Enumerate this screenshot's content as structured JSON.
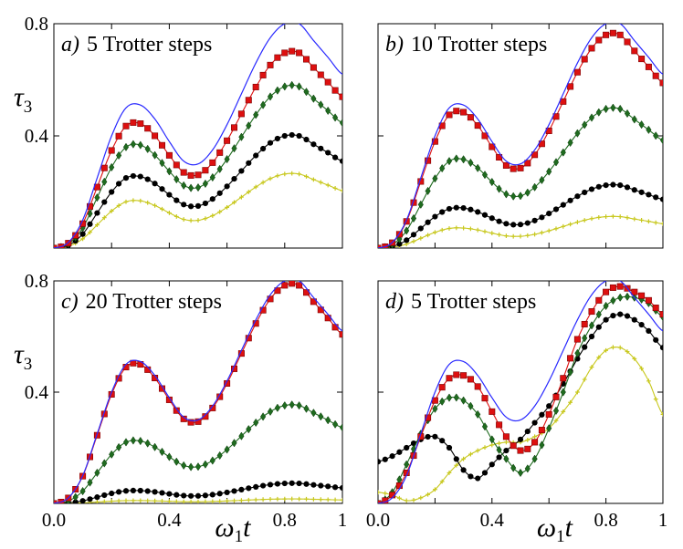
{
  "chart_data": [
    {
      "type": "line",
      "panel_label": "a)",
      "title": "5 Trotter steps",
      "ylabel": "τ3",
      "xlabel": "",
      "xlim": [
        0,
        1
      ],
      "ylim": [
        0,
        0.8
      ],
      "xticks": [],
      "yticks": [
        "0.4",
        "0.8"
      ],
      "exact": {
        "name": "exact",
        "color": "#2929ff",
        "x": [
          0,
          0.05,
          0.1,
          0.15,
          0.2,
          0.25,
          0.3,
          0.35,
          0.4,
          0.45,
          0.5,
          0.55,
          0.6,
          0.65,
          0.7,
          0.75,
          0.8,
          0.85,
          0.9,
          0.95,
          1.0
        ],
        "values": [
          0,
          0.02,
          0.1,
          0.25,
          0.4,
          0.5,
          0.51,
          0.46,
          0.38,
          0.31,
          0.3,
          0.35,
          0.44,
          0.55,
          0.66,
          0.75,
          0.8,
          0.8,
          0.74,
          0.68,
          0.62
        ]
      },
      "series": [
        {
          "name": "red",
          "color": "#dd1010",
          "marker": "square",
          "amp": 0.87
        },
        {
          "name": "green",
          "color": "#1f6b1f",
          "marker": "diamond",
          "amp": 0.72
        },
        {
          "name": "black",
          "color": "#000000",
          "marker": "circle",
          "amp": 0.5
        },
        {
          "name": "yellow",
          "color": "#c8c81e",
          "marker": "plus",
          "amp": 0.33
        }
      ]
    },
    {
      "type": "line",
      "panel_label": "b)",
      "title": "10 Trotter steps",
      "ylabel": "",
      "xlabel": "",
      "xlim": [
        0,
        1
      ],
      "ylim": [
        0,
        0.8
      ],
      "xticks": [],
      "yticks": [],
      "exact": {
        "name": "exact",
        "color": "#2929ff",
        "x": [
          0,
          0.05,
          0.1,
          0.15,
          0.2,
          0.25,
          0.3,
          0.35,
          0.4,
          0.45,
          0.5,
          0.55,
          0.6,
          0.65,
          0.7,
          0.75,
          0.8,
          0.85,
          0.9,
          0.95,
          1.0
        ],
        "values": [
          0,
          0.02,
          0.1,
          0.25,
          0.4,
          0.5,
          0.51,
          0.46,
          0.38,
          0.31,
          0.3,
          0.35,
          0.44,
          0.55,
          0.66,
          0.75,
          0.8,
          0.8,
          0.74,
          0.68,
          0.62
        ]
      },
      "series": [
        {
          "name": "red",
          "color": "#dd1010",
          "marker": "square",
          "amp": 0.95
        },
        {
          "name": "green",
          "color": "#1f6b1f",
          "marker": "diamond",
          "amp": 0.62
        },
        {
          "name": "black",
          "color": "#000000",
          "marker": "circle",
          "amp": 0.28
        },
        {
          "name": "yellow",
          "color": "#c8c81e",
          "marker": "plus",
          "amp": 0.14
        }
      ]
    },
    {
      "type": "line",
      "panel_label": "c)",
      "title": "20 Trotter steps",
      "ylabel": "τ3",
      "xlabel": "ω1t",
      "xlim": [
        0,
        1
      ],
      "ylim": [
        0,
        0.8
      ],
      "xticks": [
        "0.0",
        "0.4",
        "0.8",
        "1"
      ],
      "yticks": [
        "0.4",
        "0.8"
      ],
      "exact": {
        "name": "exact",
        "color": "#2929ff",
        "x": [
          0,
          0.05,
          0.1,
          0.15,
          0.2,
          0.25,
          0.3,
          0.35,
          0.4,
          0.45,
          0.5,
          0.55,
          0.6,
          0.65,
          0.7,
          0.75,
          0.8,
          0.85,
          0.9,
          0.95,
          1.0
        ],
        "values": [
          0,
          0.02,
          0.1,
          0.25,
          0.4,
          0.5,
          0.51,
          0.46,
          0.38,
          0.31,
          0.3,
          0.35,
          0.44,
          0.55,
          0.66,
          0.75,
          0.8,
          0.8,
          0.74,
          0.68,
          0.62
        ]
      },
      "series": [
        {
          "name": "red",
          "color": "#dd1010",
          "marker": "square",
          "amp": 0.98
        },
        {
          "name": "green",
          "color": "#1f6b1f",
          "marker": "diamond",
          "amp": 0.44
        },
        {
          "name": "black",
          "color": "#000000",
          "marker": "circle",
          "amp": 0.09
        },
        {
          "name": "yellow",
          "color": "#c8c81e",
          "marker": "plus",
          "amp": 0.02
        }
      ]
    },
    {
      "type": "line",
      "panel_label": "d)",
      "title": "5 Trotter steps",
      "ylabel": "",
      "xlabel": "ω1t",
      "xlim": [
        0,
        1
      ],
      "ylim": [
        0,
        0.8
      ],
      "xticks": [
        "0.0",
        "0.4",
        "0.8",
        "1"
      ],
      "yticks": [],
      "exact": {
        "name": "exact",
        "color": "#2929ff",
        "x": [
          0,
          0.05,
          0.1,
          0.15,
          0.2,
          0.25,
          0.3,
          0.35,
          0.4,
          0.45,
          0.5,
          0.55,
          0.6,
          0.65,
          0.7,
          0.75,
          0.8,
          0.85,
          0.9,
          0.95,
          1.0
        ],
        "values": [
          0,
          0.02,
          0.1,
          0.25,
          0.4,
          0.5,
          0.51,
          0.46,
          0.38,
          0.31,
          0.3,
          0.35,
          0.44,
          0.55,
          0.66,
          0.75,
          0.8,
          0.8,
          0.74,
          0.68,
          0.62
        ]
      },
      "series": [
        {
          "name": "red",
          "color": "#dd1010",
          "marker": "square",
          "x": [
            0,
            0.05,
            0.1,
            0.15,
            0.2,
            0.25,
            0.3,
            0.35,
            0.4,
            0.45,
            0.5,
            0.55,
            0.6,
            0.65,
            0.7,
            0.75,
            0.8,
            0.85,
            0.9,
            0.95,
            1.0
          ],
          "values": [
            0,
            0.03,
            0.11,
            0.24,
            0.37,
            0.45,
            0.46,
            0.42,
            0.33,
            0.24,
            0.19,
            0.22,
            0.32,
            0.45,
            0.59,
            0.69,
            0.76,
            0.78,
            0.76,
            0.73,
            0.68
          ]
        },
        {
          "name": "green",
          "color": "#1f6b1f",
          "marker": "diamond",
          "x": [
            0,
            0.05,
            0.1,
            0.15,
            0.2,
            0.25,
            0.3,
            0.35,
            0.4,
            0.45,
            0.5,
            0.55,
            0.6,
            0.65,
            0.7,
            0.75,
            0.8,
            0.85,
            0.9,
            0.95,
            1.0
          ],
          "values": [
            0,
            0.04,
            0.14,
            0.25,
            0.34,
            0.38,
            0.37,
            0.32,
            0.23,
            0.16,
            0.11,
            0.16,
            0.27,
            0.4,
            0.54,
            0.64,
            0.71,
            0.74,
            0.74,
            0.72,
            0.67
          ]
        },
        {
          "name": "black",
          "color": "#000000",
          "marker": "circle",
          "x": [
            0,
            0.05,
            0.1,
            0.15,
            0.2,
            0.25,
            0.3,
            0.35,
            0.4,
            0.45,
            0.5,
            0.55,
            0.6,
            0.65,
            0.7,
            0.75,
            0.8,
            0.85,
            0.9,
            0.95,
            1.0
          ],
          "values": [
            0.15,
            0.17,
            0.2,
            0.23,
            0.24,
            0.2,
            0.12,
            0.09,
            0.14,
            0.19,
            0.23,
            0.29,
            0.35,
            0.43,
            0.52,
            0.6,
            0.66,
            0.68,
            0.66,
            0.62,
            0.56
          ]
        },
        {
          "name": "yellow",
          "color": "#c8c81e",
          "marker": "plus",
          "x": [
            0,
            0.05,
            0.1,
            0.15,
            0.2,
            0.25,
            0.3,
            0.35,
            0.4,
            0.45,
            0.5,
            0.55,
            0.6,
            0.65,
            0.7,
            0.75,
            0.8,
            0.85,
            0.9,
            0.95,
            1.0
          ],
          "values": [
            0.04,
            0.03,
            0.01,
            0.02,
            0.05,
            0.11,
            0.16,
            0.19,
            0.21,
            0.22,
            0.22,
            0.24,
            0.27,
            0.33,
            0.4,
            0.49,
            0.55,
            0.56,
            0.52,
            0.44,
            0.32
          ]
        }
      ]
    }
  ]
}
